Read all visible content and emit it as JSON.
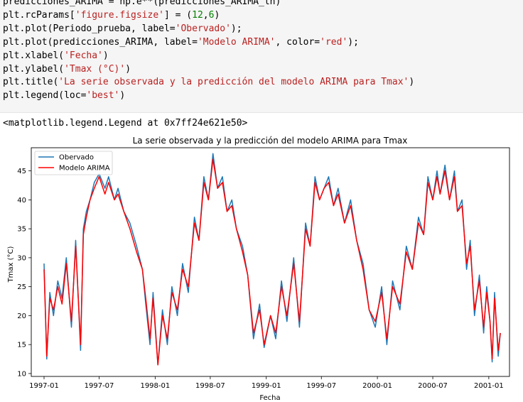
{
  "code_cell": {
    "lines": [
      [
        {
          "t": "predicciones_ARIMA = np.e**(predicciones_ARIMA_ln)"
        }
      ],
      [
        {
          "t": "plt.rcParams["
        },
        {
          "t": "'figure.figsize'",
          "c": "str"
        },
        {
          "t": "] = ("
        },
        {
          "t": "12",
          "c": "num"
        },
        {
          "t": ","
        },
        {
          "t": "6",
          "c": "num"
        },
        {
          "t": ")"
        }
      ],
      [
        {
          "t": "plt.plot(Periodo_prueba, label="
        },
        {
          "t": "'Obervado'",
          "c": "str"
        },
        {
          "t": ");"
        }
      ],
      [
        {
          "t": "plt.plot(predicciones_ARIMA, label="
        },
        {
          "t": "'Modelo ARIMA'",
          "c": "str"
        },
        {
          "t": ", color="
        },
        {
          "t": "'red'",
          "c": "str"
        },
        {
          "t": ");"
        }
      ],
      [
        {
          "t": "plt.xlabel("
        },
        {
          "t": "'Fecha'",
          "c": "str"
        },
        {
          "t": ")"
        }
      ],
      [
        {
          "t": "plt.ylabel("
        },
        {
          "t": "'Tmax (°C)'",
          "c": "str"
        },
        {
          "t": ")"
        }
      ],
      [
        {
          "t": "plt.title("
        },
        {
          "t": "'La serie observada y la predicción del modelo ARIMA para Tmax'",
          "c": "str"
        },
        {
          "t": ")"
        }
      ],
      [
        {
          "t": "plt.legend(loc="
        },
        {
          "t": "'best'",
          "c": "str"
        },
        {
          "t": ")"
        }
      ]
    ]
  },
  "output_text": "<matplotlib.legend.Legend at 0x7ff24e621e50>",
  "chart_data": {
    "type": "line",
    "title": "La serie observada y la predicción del modelo ARIMA para Tmax",
    "xlabel": "Fecha",
    "ylabel": "Tmax (°C)",
    "x_range": [
      "1996-11-20",
      "2001-03-10"
    ],
    "ylim": [
      9.5,
      49
    ],
    "x_tick_labels": [
      "1997-01",
      "1997-07",
      "1998-01",
      "1998-07",
      "1999-01",
      "1999-07",
      "2000-01",
      "2000-07",
      "2001-01"
    ],
    "y_ticks": [
      10,
      15,
      20,
      25,
      30,
      35,
      40,
      45
    ],
    "grid": false,
    "legend_position": "upper-left",
    "legend": [
      "Obervado",
      "Modelo ARIMA"
    ],
    "series": [
      {
        "name": "Obervado",
        "color": "#1f77b4",
        "points": [
          [
            "1997-01-01",
            29
          ],
          [
            "1997-01-10",
            12.5
          ],
          [
            "1997-01-20",
            24
          ],
          [
            "1997-02-01",
            20
          ],
          [
            "1997-02-15",
            26
          ],
          [
            "1997-03-01",
            23
          ],
          [
            "1997-03-15",
            30
          ],
          [
            "1997-04-01",
            18
          ],
          [
            "1997-04-15",
            33
          ],
          [
            "1997-05-01",
            14
          ],
          [
            "1997-05-10",
            35
          ],
          [
            "1997-05-20",
            38
          ],
          [
            "1997-06-01",
            40
          ],
          [
            "1997-06-15",
            43
          ],
          [
            "1997-07-01",
            44.5
          ],
          [
            "1997-07-20",
            42
          ],
          [
            "1997-08-01",
            44
          ],
          [
            "1997-08-20",
            40
          ],
          [
            "1997-09-01",
            42
          ],
          [
            "1997-09-20",
            38
          ],
          [
            "1997-10-10",
            36
          ],
          [
            "1997-11-01",
            32
          ],
          [
            "1997-11-20",
            28
          ],
          [
            "1997-12-01",
            22
          ],
          [
            "1997-12-15",
            15
          ],
          [
            "1997-12-25",
            24
          ],
          [
            "1998-01-10",
            11.5
          ],
          [
            "1998-01-25",
            21
          ],
          [
            "1998-02-10",
            15
          ],
          [
            "1998-02-25",
            25
          ],
          [
            "1998-03-15",
            20
          ],
          [
            "1998-04-01",
            29
          ],
          [
            "1998-04-20",
            24
          ],
          [
            "1998-05-10",
            37
          ],
          [
            "1998-05-25",
            33
          ],
          [
            "1998-06-10",
            44
          ],
          [
            "1998-06-25",
            40
          ],
          [
            "1998-07-10",
            48
          ],
          [
            "1998-07-25",
            42
          ],
          [
            "1998-08-10",
            44
          ],
          [
            "1998-08-25",
            38
          ],
          [
            "1998-09-10",
            40
          ],
          [
            "1998-09-25",
            35
          ],
          [
            "1998-10-15",
            32
          ],
          [
            "1998-11-01",
            27
          ],
          [
            "1998-11-20",
            16
          ],
          [
            "1998-12-10",
            22
          ],
          [
            "1998-12-25",
            14.5
          ],
          [
            "1999-01-15",
            20
          ],
          [
            "1999-02-01",
            16
          ],
          [
            "1999-02-20",
            26
          ],
          [
            "1999-03-10",
            19
          ],
          [
            "1999-04-01",
            30
          ],
          [
            "1999-04-20",
            18
          ],
          [
            "1999-05-10",
            36
          ],
          [
            "1999-05-25",
            32
          ],
          [
            "1999-06-10",
            44
          ],
          [
            "1999-06-25",
            40
          ],
          [
            "1999-07-10",
            42
          ],
          [
            "1999-07-25",
            44
          ],
          [
            "1999-08-10",
            39
          ],
          [
            "1999-08-25",
            42
          ],
          [
            "1999-09-15",
            36
          ],
          [
            "1999-10-05",
            40
          ],
          [
            "1999-10-25",
            33
          ],
          [
            "1999-11-15",
            29
          ],
          [
            "1999-12-05",
            21
          ],
          [
            "1999-12-25",
            18
          ],
          [
            "2000-01-15",
            25
          ],
          [
            "2000-02-01",
            15
          ],
          [
            "2000-02-20",
            26
          ],
          [
            "2000-03-15",
            21
          ],
          [
            "2000-04-05",
            32
          ],
          [
            "2000-04-25",
            28
          ],
          [
            "2000-05-15",
            37
          ],
          [
            "2000-06-01",
            34
          ],
          [
            "2000-06-15",
            44
          ],
          [
            "2000-07-01",
            40
          ],
          [
            "2000-07-15",
            45
          ],
          [
            "2000-07-25",
            41
          ],
          [
            "2000-08-10",
            46
          ],
          [
            "2000-08-25",
            40
          ],
          [
            "2000-09-10",
            45
          ],
          [
            "2000-09-20",
            38
          ],
          [
            "2000-10-05",
            40
          ],
          [
            "2000-10-20",
            28
          ],
          [
            "2000-11-01",
            33
          ],
          [
            "2000-11-15",
            20
          ],
          [
            "2000-12-01",
            27
          ],
          [
            "2000-12-15",
            17
          ],
          [
            "2000-12-25",
            25
          ],
          [
            "2001-01-05",
            19
          ],
          [
            "2001-01-12",
            12
          ],
          [
            "2001-01-20",
            24
          ],
          [
            "2001-02-01",
            13
          ],
          [
            "2001-02-08",
            17
          ]
        ]
      },
      {
        "name": "Modelo ARIMA",
        "color": "#ff0000",
        "points": [
          [
            "1997-01-01",
            28
          ],
          [
            "1997-01-10",
            13
          ],
          [
            "1997-01-20",
            23
          ],
          [
            "1997-02-01",
            21
          ],
          [
            "1997-02-15",
            25
          ],
          [
            "1997-03-01",
            22
          ],
          [
            "1997-03-15",
            29
          ],
          [
            "1997-04-01",
            19
          ],
          [
            "1997-04-15",
            32
          ],
          [
            "1997-05-01",
            15
          ],
          [
            "1997-05-10",
            34
          ],
          [
            "1997-05-20",
            37
          ],
          [
            "1997-06-01",
            40
          ],
          [
            "1997-06-15",
            42
          ],
          [
            "1997-07-01",
            44
          ],
          [
            "1997-07-20",
            41
          ],
          [
            "1997-08-01",
            43
          ],
          [
            "1997-08-20",
            40
          ],
          [
            "1997-09-01",
            41
          ],
          [
            "1997-09-20",
            38
          ],
          [
            "1997-10-10",
            35
          ],
          [
            "1997-11-01",
            31
          ],
          [
            "1997-11-20",
            28
          ],
          [
            "1997-12-01",
            23
          ],
          [
            "1997-12-15",
            16
          ],
          [
            "1997-12-25",
            23
          ],
          [
            "1998-01-10",
            11.5
          ],
          [
            "1998-01-25",
            20
          ],
          [
            "1998-02-10",
            16
          ],
          [
            "1998-02-25",
            24
          ],
          [
            "1998-03-15",
            21
          ],
          [
            "1998-04-01",
            28
          ],
          [
            "1998-04-20",
            25
          ],
          [
            "1998-05-10",
            36
          ],
          [
            "1998-05-25",
            33
          ],
          [
            "1998-06-10",
            43
          ],
          [
            "1998-06-25",
            40
          ],
          [
            "1998-07-10",
            47
          ],
          [
            "1998-07-25",
            42
          ],
          [
            "1998-08-10",
            43
          ],
          [
            "1998-08-25",
            38
          ],
          [
            "1998-09-10",
            39
          ],
          [
            "1998-09-25",
            35
          ],
          [
            "1998-10-15",
            31
          ],
          [
            "1998-11-01",
            27
          ],
          [
            "1998-11-20",
            17
          ],
          [
            "1998-12-10",
            21
          ],
          [
            "1998-12-25",
            15
          ],
          [
            "1999-01-15",
            20
          ],
          [
            "1999-02-01",
            17
          ],
          [
            "1999-02-20",
            25
          ],
          [
            "1999-03-10",
            20
          ],
          [
            "1999-04-01",
            29
          ],
          [
            "1999-04-20",
            19
          ],
          [
            "1999-05-10",
            35
          ],
          [
            "1999-05-25",
            32
          ],
          [
            "1999-06-10",
            43
          ],
          [
            "1999-06-25",
            40
          ],
          [
            "1999-07-10",
            42
          ],
          [
            "1999-07-25",
            43
          ],
          [
            "1999-08-10",
            39
          ],
          [
            "1999-08-25",
            41
          ],
          [
            "1999-09-15",
            36
          ],
          [
            "1999-10-05",
            39
          ],
          [
            "1999-10-25",
            33
          ],
          [
            "1999-11-15",
            28
          ],
          [
            "1999-12-05",
            21
          ],
          [
            "1999-12-25",
            19
          ],
          [
            "2000-01-15",
            24
          ],
          [
            "2000-02-01",
            16
          ],
          [
            "2000-02-20",
            25
          ],
          [
            "2000-03-15",
            22
          ],
          [
            "2000-04-05",
            31
          ],
          [
            "2000-04-25",
            28
          ],
          [
            "2000-05-15",
            36
          ],
          [
            "2000-06-01",
            34
          ],
          [
            "2000-06-15",
            43
          ],
          [
            "2000-07-01",
            40
          ],
          [
            "2000-07-15",
            44
          ],
          [
            "2000-07-25",
            41
          ],
          [
            "2000-08-10",
            45
          ],
          [
            "2000-08-25",
            40
          ],
          [
            "2000-09-10",
            44
          ],
          [
            "2000-09-20",
            38
          ],
          [
            "2000-10-05",
            39
          ],
          [
            "2000-10-20",
            29
          ],
          [
            "2000-11-01",
            32
          ],
          [
            "2000-11-15",
            21
          ],
          [
            "2000-12-01",
            26
          ],
          [
            "2000-12-15",
            18
          ],
          [
            "2000-12-25",
            24
          ],
          [
            "2001-01-05",
            19
          ],
          [
            "2001-01-12",
            12.5
          ],
          [
            "2001-01-20",
            23
          ],
          [
            "2001-02-01",
            14
          ],
          [
            "2001-02-08",
            17
          ]
        ]
      }
    ]
  }
}
